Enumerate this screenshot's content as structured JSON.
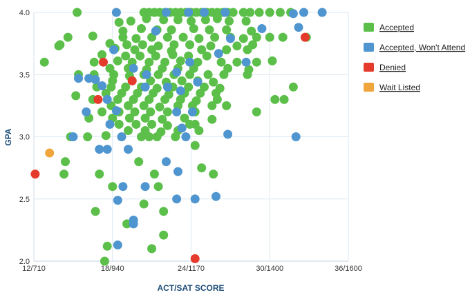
{
  "chart_data": {
    "type": "scatter",
    "xlabel": "ACT/SAT SCORE",
    "ylabel": "GPA",
    "x_ticks": [
      {
        "value": 12,
        "label": "12/710"
      },
      {
        "value": 18,
        "label": "18/940"
      },
      {
        "value": 24,
        "label": "24/1170"
      },
      {
        "value": 30,
        "label": "30/1400"
      },
      {
        "value": 36,
        "label": "36/1600"
      }
    ],
    "y_ticks": [
      {
        "value": 2.0,
        "label": "2.0"
      },
      {
        "value": 2.5,
        "label": "2.5"
      },
      {
        "value": 3.0,
        "label": "3.0"
      },
      {
        "value": 3.5,
        "label": "3.5"
      },
      {
        "value": 4.0,
        "label": "4.0"
      }
    ],
    "xlim": [
      12,
      36
    ],
    "ylim": [
      2.0,
      4.0
    ],
    "grid": true,
    "legend_position": "right",
    "series": [
      {
        "name": "Accepted",
        "color": "#5bbf4a",
        "points": [
          [
            15.3,
            4.0
          ],
          [
            20.4,
            4.0
          ],
          [
            20.8,
            4.0
          ],
          [
            21.2,
            4.0
          ],
          [
            21.6,
            4.0
          ],
          [
            22.0,
            4.0
          ],
          [
            22.4,
            4.0
          ],
          [
            22.8,
            4.0
          ],
          [
            23.2,
            4.0
          ],
          [
            23.6,
            4.0
          ],
          [
            24.0,
            4.0
          ],
          [
            24.4,
            4.0
          ],
          [
            24.8,
            4.0
          ],
          [
            25.2,
            4.0
          ],
          [
            25.6,
            4.0
          ],
          [
            26.0,
            4.0
          ],
          [
            26.4,
            4.0
          ],
          [
            26.8,
            4.0
          ],
          [
            27.2,
            4.0
          ],
          [
            28.0,
            4.0
          ],
          [
            28.5,
            4.0
          ],
          [
            29.2,
            4.0
          ],
          [
            30.0,
            4.0
          ],
          [
            30.8,
            4.0
          ],
          [
            31.6,
            4.0
          ],
          [
            18.5,
            3.92
          ],
          [
            19.4,
            3.93
          ],
          [
            20.6,
            3.95
          ],
          [
            21.9,
            3.94
          ],
          [
            23.0,
            3.94
          ],
          [
            24.0,
            3.93
          ],
          [
            25.1,
            3.94
          ],
          [
            26.0,
            3.95
          ],
          [
            26.9,
            3.93
          ],
          [
            28.2,
            3.93
          ],
          [
            18.8,
            3.85
          ],
          [
            20.2,
            3.87
          ],
          [
            21.4,
            3.86
          ],
          [
            22.5,
            3.86
          ],
          [
            24.2,
            3.87
          ],
          [
            25.4,
            3.86
          ],
          [
            26.7,
            3.86
          ],
          [
            28.6,
            3.85
          ],
          [
            14.6,
            3.8
          ],
          [
            16.5,
            3.81
          ],
          [
            18.8,
            3.8
          ],
          [
            19.8,
            3.79
          ],
          [
            21.0,
            3.8
          ],
          [
            22.2,
            3.8
          ],
          [
            23.4,
            3.8
          ],
          [
            24.6,
            3.79
          ],
          [
            25.8,
            3.8
          ],
          [
            27.0,
            3.8
          ],
          [
            28.0,
            3.79
          ],
          [
            29.0,
            3.8
          ],
          [
            30.0,
            3.8
          ],
          [
            31.0,
            3.8
          ],
          [
            32.8,
            3.8
          ],
          [
            14.0,
            3.74
          ],
          [
            17.8,
            3.75
          ],
          [
            19.1,
            3.74
          ],
          [
            20.3,
            3.74
          ],
          [
            21.5,
            3.73
          ],
          [
            22.7,
            3.74
          ],
          [
            23.9,
            3.74
          ],
          [
            25.5,
            3.73
          ],
          [
            27.5,
            3.73
          ],
          [
            28.7,
            3.74
          ],
          [
            13.9,
            3.73
          ],
          [
            18.2,
            3.71
          ],
          [
            19.7,
            3.7
          ],
          [
            21.0,
            3.7
          ],
          [
            22.5,
            3.69
          ],
          [
            24.8,
            3.7
          ],
          [
            26.7,
            3.7
          ],
          [
            28.3,
            3.7
          ],
          [
            17.2,
            3.66
          ],
          [
            19.0,
            3.65
          ],
          [
            20.1,
            3.65
          ],
          [
            21.3,
            3.65
          ],
          [
            22.6,
            3.66
          ],
          [
            23.8,
            3.65
          ],
          [
            25.2,
            3.65
          ],
          [
            12.8,
            3.6
          ],
          [
            16.6,
            3.6
          ],
          [
            18.4,
            3.61
          ],
          [
            19.5,
            3.6
          ],
          [
            20.8,
            3.6
          ],
          [
            22.0,
            3.6
          ],
          [
            23.2,
            3.61
          ],
          [
            24.5,
            3.6
          ],
          [
            26.3,
            3.6
          ],
          [
            27.5,
            3.6
          ],
          [
            29.0,
            3.6
          ],
          [
            30.2,
            3.61
          ],
          [
            17.8,
            3.55
          ],
          [
            19.2,
            3.55
          ],
          [
            20.6,
            3.54
          ],
          [
            21.8,
            3.55
          ],
          [
            23.0,
            3.55
          ],
          [
            24.2,
            3.55
          ],
          [
            26.8,
            3.55
          ],
          [
            28.4,
            3.54
          ],
          [
            15.4,
            3.5
          ],
          [
            16.6,
            3.5
          ],
          [
            18.1,
            3.5
          ],
          [
            19.3,
            3.49
          ],
          [
            20.4,
            3.5
          ],
          [
            21.5,
            3.5
          ],
          [
            22.7,
            3.5
          ],
          [
            23.9,
            3.5
          ],
          [
            25.3,
            3.5
          ],
          [
            26.5,
            3.5
          ],
          [
            28.3,
            3.5
          ],
          [
            18.0,
            3.45
          ],
          [
            19.5,
            3.45
          ],
          [
            20.9,
            3.45
          ],
          [
            22.1,
            3.44
          ],
          [
            23.3,
            3.45
          ],
          [
            24.5,
            3.45
          ],
          [
            25.7,
            3.44
          ],
          [
            16.8,
            3.4
          ],
          [
            17.9,
            3.4
          ],
          [
            19.0,
            3.4
          ],
          [
            20.2,
            3.4
          ],
          [
            21.4,
            3.39
          ],
          [
            22.6,
            3.4
          ],
          [
            23.8,
            3.4
          ],
          [
            25.0,
            3.4
          ],
          [
            26.2,
            3.39
          ],
          [
            31.8,
            3.4
          ],
          [
            17.5,
            3.35
          ],
          [
            18.7,
            3.35
          ],
          [
            19.9,
            3.35
          ],
          [
            21.1,
            3.35
          ],
          [
            22.3,
            3.34
          ],
          [
            23.5,
            3.35
          ],
          [
            24.7,
            3.35
          ],
          [
            25.9,
            3.35
          ],
          [
            15.2,
            3.33
          ],
          [
            16.5,
            3.3
          ],
          [
            18.4,
            3.3
          ],
          [
            19.6,
            3.3
          ],
          [
            20.8,
            3.3
          ],
          [
            22.0,
            3.3
          ],
          [
            23.2,
            3.3
          ],
          [
            24.4,
            3.29
          ],
          [
            26.0,
            3.3
          ],
          [
            30.4,
            3.3
          ],
          [
            31.1,
            3.3
          ],
          [
            17.9,
            3.25
          ],
          [
            19.2,
            3.25
          ],
          [
            20.4,
            3.25
          ],
          [
            21.6,
            3.24
          ],
          [
            23.0,
            3.25
          ],
          [
            24.1,
            3.25
          ],
          [
            25.6,
            3.25
          ],
          [
            26.7,
            3.25
          ],
          [
            17.2,
            3.2
          ],
          [
            18.5,
            3.2
          ],
          [
            19.7,
            3.2
          ],
          [
            20.9,
            3.2
          ],
          [
            22.2,
            3.2
          ],
          [
            24.3,
            3.2
          ],
          [
            29.0,
            3.2
          ],
          [
            16.2,
            3.15
          ],
          [
            18.0,
            3.15
          ],
          [
            19.3,
            3.15
          ],
          [
            20.5,
            3.15
          ],
          [
            21.8,
            3.14
          ],
          [
            23.5,
            3.15
          ],
          [
            25.6,
            3.14
          ],
          [
            18.5,
            3.1
          ],
          [
            19.8,
            3.1
          ],
          [
            21.0,
            3.1
          ],
          [
            22.2,
            3.09
          ],
          [
            23.9,
            3.1
          ],
          [
            24.3,
            3.1
          ],
          [
            19.2,
            3.05
          ],
          [
            20.5,
            3.05
          ],
          [
            21.7,
            3.04
          ],
          [
            23.0,
            3.05
          ],
          [
            24.6,
            3.05
          ],
          [
            14.8,
            3.0
          ],
          [
            16.1,
            3.0
          ],
          [
            17.5,
            3.01
          ],
          [
            20.2,
            3.0
          ],
          [
            20.8,
            3.0
          ],
          [
            21.4,
            3.0
          ],
          [
            22.8,
            3.0
          ],
          [
            24.3,
            2.93
          ],
          [
            14.4,
            2.8
          ],
          [
            20.0,
            2.8
          ],
          [
            24.8,
            2.75
          ],
          [
            14.3,
            2.7
          ],
          [
            17.0,
            2.7
          ],
          [
            21.2,
            2.7
          ],
          [
            25.7,
            2.7
          ],
          [
            18.0,
            2.6
          ],
          [
            21.5,
            2.6
          ],
          [
            20.4,
            2.46
          ],
          [
            16.7,
            2.4
          ],
          [
            21.9,
            2.4
          ],
          [
            19.1,
            2.3
          ],
          [
            21.9,
            2.21
          ],
          [
            17.6,
            2.12
          ],
          [
            21.0,
            2.1
          ],
          [
            17.4,
            2.0
          ]
        ]
      },
      {
        "name": "Accepted, Won't Attend",
        "color": "#4f95d0",
        "points": [
          [
            18.3,
            4.0
          ],
          [
            22.1,
            4.0
          ],
          [
            23.8,
            4.0
          ],
          [
            25.0,
            4.0
          ],
          [
            26.6,
            4.0
          ],
          [
            31.8,
            3.99
          ],
          [
            32.6,
            4.0
          ],
          [
            34.0,
            4.0
          ],
          [
            32.2,
            3.88
          ],
          [
            29.4,
            3.87
          ],
          [
            21.3,
            3.85
          ],
          [
            27.0,
            3.79
          ],
          [
            18.1,
            3.7
          ],
          [
            26.1,
            3.67
          ],
          [
            28.2,
            3.6
          ],
          [
            23.9,
            3.6
          ],
          [
            19.6,
            3.55
          ],
          [
            22.9,
            3.52
          ],
          [
            15.4,
            3.47
          ],
          [
            16.2,
            3.47
          ],
          [
            16.7,
            3.46
          ],
          [
            20.6,
            3.5
          ],
          [
            24.5,
            3.44
          ],
          [
            17.2,
            3.41
          ],
          [
            20.5,
            3.4
          ],
          [
            22.2,
            3.4
          ],
          [
            23.2,
            3.37
          ],
          [
            17.6,
            3.3
          ],
          [
            16.0,
            3.2
          ],
          [
            18.3,
            3.21
          ],
          [
            22.9,
            3.2
          ],
          [
            24.1,
            3.2
          ],
          [
            17.8,
            3.1
          ],
          [
            23.3,
            3.07
          ],
          [
            26.8,
            3.02
          ],
          [
            15.0,
            3.0
          ],
          [
            18.7,
            3.0
          ],
          [
            23.6,
            3.0
          ],
          [
            32.0,
            3.0
          ],
          [
            17.0,
            2.9
          ],
          [
            17.6,
            2.9
          ],
          [
            19.2,
            2.9
          ],
          [
            22.1,
            2.8
          ],
          [
            23.0,
            2.72
          ],
          [
            18.8,
            2.6
          ],
          [
            20.5,
            2.6
          ],
          [
            18.4,
            2.49
          ],
          [
            22.9,
            2.5
          ],
          [
            24.3,
            2.5
          ],
          [
            25.9,
            2.52
          ],
          [
            19.6,
            2.33
          ],
          [
            19.6,
            2.3
          ],
          [
            18.4,
            2.13
          ]
        ]
      },
      {
        "name": "Denied",
        "color": "#e53b2c",
        "points": [
          [
            17.3,
            3.6
          ],
          [
            19.5,
            3.45
          ],
          [
            16.9,
            3.3
          ],
          [
            32.7,
            3.8
          ],
          [
            12.1,
            2.7
          ],
          [
            24.3,
            2.02
          ]
        ]
      },
      {
        "name": "Wait Listed",
        "color": "#f0a63c",
        "points": [
          [
            13.2,
            2.87
          ]
        ]
      }
    ]
  }
}
